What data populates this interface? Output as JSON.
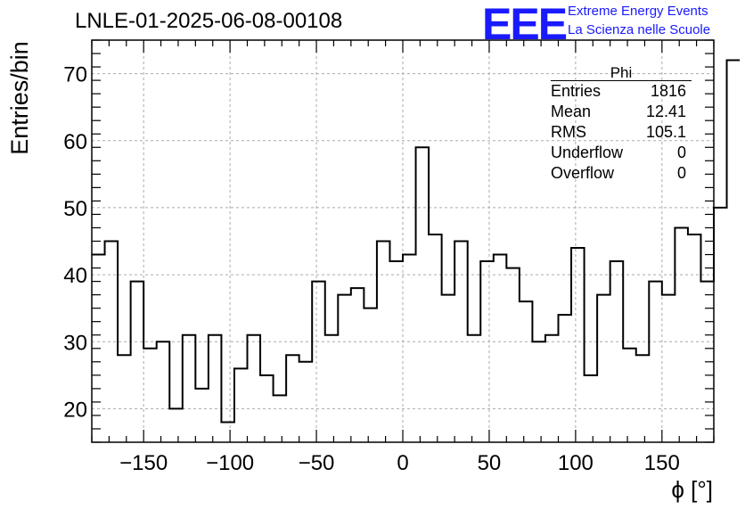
{
  "header": {
    "run_title": "LNLE-01-2025-06-08-00108",
    "logo_text": "EEE",
    "logo_line1": "Extreme Energy Events",
    "logo_line2": "La Scienza nelle Scuole"
  },
  "stats_box": {
    "title": "Phi",
    "rows": [
      {
        "label": "Entries",
        "value": "1816"
      },
      {
        "label": "Mean",
        "value": "12.41"
      },
      {
        "label": "RMS",
        "value": "105.1"
      },
      {
        "label": "Underflow",
        "value": "0"
      },
      {
        "label": "Overflow",
        "value": "0"
      }
    ]
  },
  "colors": {
    "logo": "#1a1aff",
    "line": "#000000",
    "grid": "#aaaaaa"
  },
  "chart_data": {
    "type": "bar",
    "style": "step-histogram",
    "title": "LNLE-01-2025-06-08-00108",
    "xlabel": "ϕ [°]",
    "ylabel": "Entries/bin",
    "xlim": [
      -180,
      180
    ],
    "ylim": [
      15,
      75
    ],
    "bin_width": 7.5,
    "xticks": [
      -150,
      -100,
      -50,
      0,
      50,
      100,
      150
    ],
    "xtick_labels": [
      "−150",
      "−100",
      "−50",
      "0",
      "50",
      "100",
      "150"
    ],
    "yticks": [
      20,
      30,
      40,
      50,
      60,
      70
    ],
    "ytick_labels": [
      "20",
      "30",
      "40",
      "50",
      "60",
      "70"
    ],
    "grid": true,
    "values": [
      43,
      45,
      28,
      39,
      29,
      30,
      20,
      31,
      23,
      31,
      18,
      26,
      31,
      25,
      22,
      28,
      27,
      39,
      31,
      37,
      38,
      35,
      45,
      42,
      43,
      59,
      46,
      37,
      45,
      31,
      42,
      43,
      41,
      36,
      30,
      31,
      34,
      44,
      25,
      37,
      42,
      29,
      28,
      39,
      37,
      47,
      46,
      39,
      50,
      72
    ]
  }
}
